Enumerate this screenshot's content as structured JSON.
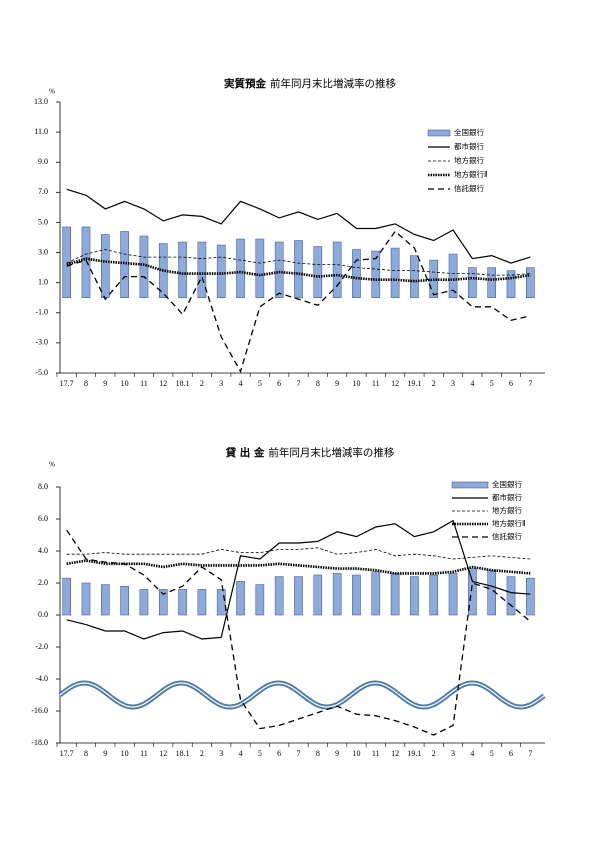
{
  "chart_data": [
    {
      "type": "bar_line",
      "title_bold": "実質預金",
      "title": "前年同月末比増減率の推移",
      "y_label": "%",
      "categories": [
        "17.7",
        "8",
        "9",
        "10",
        "11",
        "12",
        "18.1",
        "2",
        "3",
        "4",
        "5",
        "6",
        "7",
        "8",
        "9",
        "10",
        "11",
        "12",
        "19.1",
        "2",
        "3",
        "4",
        "5",
        "6",
        "7"
      ],
      "ylim": [
        -5,
        13
      ],
      "yticks": [
        {
          "value": 13,
          "label": "13.0"
        },
        {
          "value": 11,
          "label": "11.0"
        },
        {
          "value": 9,
          "label": "9.0"
        },
        {
          "value": 7,
          "label": "7.0"
        },
        {
          "value": 5,
          "label": "5.0"
        },
        {
          "value": 3,
          "label": "3.0"
        },
        {
          "value": 1,
          "label": "1.0"
        },
        {
          "value": -1,
          "label": "-1.0"
        },
        {
          "value": -3,
          "label": "-3.0"
        },
        {
          "value": -5,
          "label": "-5.0"
        }
      ],
      "legend": "upper right",
      "series": [
        {
          "name": "全国銀行",
          "kind": "bar",
          "color": "#8eaadb",
          "values": [
            4.7,
            4.7,
            4.2,
            4.4,
            4.1,
            3.6,
            3.7,
            3.7,
            3.5,
            3.9,
            3.9,
            3.7,
            3.8,
            3.4,
            3.7,
            3.2,
            3.1,
            3.3,
            2.8,
            2.5,
            2.9,
            2.0,
            2.0,
            1.8,
            2.0
          ]
        },
        {
          "name": "都市銀行",
          "kind": "line",
          "color": "#000000",
          "width": 1.2,
          "dash": "none",
          "values": [
            7.2,
            6.8,
            5.9,
            6.4,
            5.9,
            5.1,
            5.5,
            5.4,
            4.9,
            6.4,
            5.9,
            5.3,
            5.7,
            5.2,
            5.6,
            4.6,
            4.6,
            4.9,
            4.2,
            3.8,
            4.5,
            2.6,
            2.8,
            2.3,
            2.7
          ]
        },
        {
          "name": "地方銀行",
          "kind": "line",
          "color": "#000000",
          "width": 0.8,
          "dash": "3,2",
          "values": [
            2.3,
            2.9,
            3.2,
            2.9,
            2.7,
            2.7,
            2.7,
            2.6,
            2.7,
            2.5,
            2.3,
            2.5,
            2.3,
            2.2,
            2.2,
            2.0,
            1.9,
            1.8,
            1.8,
            1.7,
            1.6,
            1.6,
            1.5,
            1.5,
            1.6
          ]
        },
        {
          "name": "地方銀行Ⅱ",
          "kind": "line",
          "color": "#000000",
          "width": 2.6,
          "dash": "1.5,1",
          "values": [
            2.2,
            2.6,
            2.4,
            2.3,
            2.2,
            1.8,
            1.6,
            1.6,
            1.6,
            1.7,
            1.5,
            1.7,
            1.6,
            1.4,
            1.5,
            1.3,
            1.2,
            1.2,
            1.1,
            1.2,
            1.2,
            1.3,
            1.2,
            1.3,
            1.5
          ]
        },
        {
          "name": "信託銀行",
          "kind": "line",
          "color": "#000000",
          "width": 1.3,
          "dash": "6,4",
          "values": [
            2.1,
            2.5,
            -0.1,
            1.4,
            1.4,
            0.3,
            -1.1,
            1.4,
            -2.6,
            -4.9,
            -0.6,
            0.3,
            -0.1,
            -0.5,
            0.8,
            2.5,
            2.6,
            4.4,
            3.3,
            0.2,
            0.5,
            -0.6,
            -0.6,
            -1.5,
            -1.2
          ]
        }
      ]
    },
    {
      "type": "bar_line",
      "title_bold": "貸 出 金",
      "title": "前年同月末比増減率の推移",
      "y_label": "%",
      "categories": [
        "17.7",
        "8",
        "9",
        "10",
        "11",
        "12",
        "18.1",
        "2",
        "3",
        "4",
        "5",
        "6",
        "7",
        "8",
        "9",
        "10",
        "11",
        "12",
        "19.1",
        "2",
        "3",
        "4",
        "5",
        "6",
        "7"
      ],
      "ylim": [
        -18,
        8
      ],
      "axis_break": [
        -5,
        -15
      ],
      "yticks": [
        {
          "value": 8,
          "label": "8.0"
        },
        {
          "value": 6,
          "label": "6.0"
        },
        {
          "value": 4,
          "label": "4.0"
        },
        {
          "value": 2,
          "label": "2.0"
        },
        {
          "value": 0,
          "label": "0.0"
        },
        {
          "value": -2,
          "label": "-2.0"
        },
        {
          "value": -4,
          "label": "-4.0"
        },
        {
          "value": -16,
          "label": "-16.0"
        },
        {
          "value": -18,
          "label": "-18.0"
        }
      ],
      "legend": "upper right",
      "series": [
        {
          "name": "全国銀行",
          "kind": "bar",
          "color": "#8eaadb",
          "values": [
            2.3,
            2.0,
            1.9,
            1.8,
            1.6,
            1.6,
            1.6,
            1.6,
            1.6,
            2.1,
            1.9,
            2.4,
            2.4,
            2.5,
            2.6,
            2.5,
            2.7,
            2.6,
            2.4,
            2.5,
            2.6,
            2.9,
            2.8,
            2.4,
            2.3
          ]
        },
        {
          "name": "都市銀行",
          "kind": "line",
          "color": "#000000",
          "width": 1.2,
          "dash": "none",
          "values": [
            -0.3,
            -0.6,
            -1.0,
            -1.0,
            -1.5,
            -1.1,
            -1.0,
            -1.5,
            -1.4,
            3.7,
            3.5,
            4.5,
            4.5,
            4.6,
            5.2,
            4.9,
            5.5,
            5.7,
            4.9,
            5.2,
            5.9,
            2.1,
            1.8,
            1.4,
            1.3
          ]
        },
        {
          "name": "地方銀行",
          "kind": "line",
          "color": "#000000",
          "width": 0.8,
          "dash": "3,2",
          "values": [
            3.8,
            3.8,
            3.9,
            3.8,
            3.8,
            3.8,
            3.8,
            3.8,
            4.1,
            3.9,
            3.9,
            4.1,
            4.1,
            4.2,
            3.8,
            3.9,
            4.1,
            3.7,
            3.8,
            3.7,
            3.5,
            3.6,
            3.7,
            3.6,
            3.5
          ]
        },
        {
          "name": "地方銀行Ⅱ",
          "kind": "line",
          "color": "#000000",
          "width": 2.6,
          "dash": "1.5,1",
          "values": [
            3.2,
            3.4,
            3.2,
            3.2,
            3.2,
            3.0,
            3.2,
            3.1,
            3.1,
            3.1,
            3.1,
            3.2,
            3.1,
            3.0,
            2.9,
            2.9,
            2.8,
            2.6,
            2.6,
            2.6,
            2.7,
            3.0,
            2.8,
            2.7,
            2.6
          ]
        },
        {
          "name": "信託銀行",
          "kind": "line",
          "color": "#000000",
          "width": 1.3,
          "dash": "6,4",
          "values": [
            5.3,
            3.5,
            3.3,
            3.2,
            2.5,
            1.3,
            1.8,
            3.0,
            2.2,
            -15.3,
            -17.1,
            -16.9,
            -16.5,
            -16.1,
            -15.7,
            -16.2,
            -16.3,
            -16.6,
            -17.0,
            -17.5,
            -16.9,
            2.0,
            1.6,
            0.6,
            -0.4
          ]
        }
      ]
    }
  ]
}
